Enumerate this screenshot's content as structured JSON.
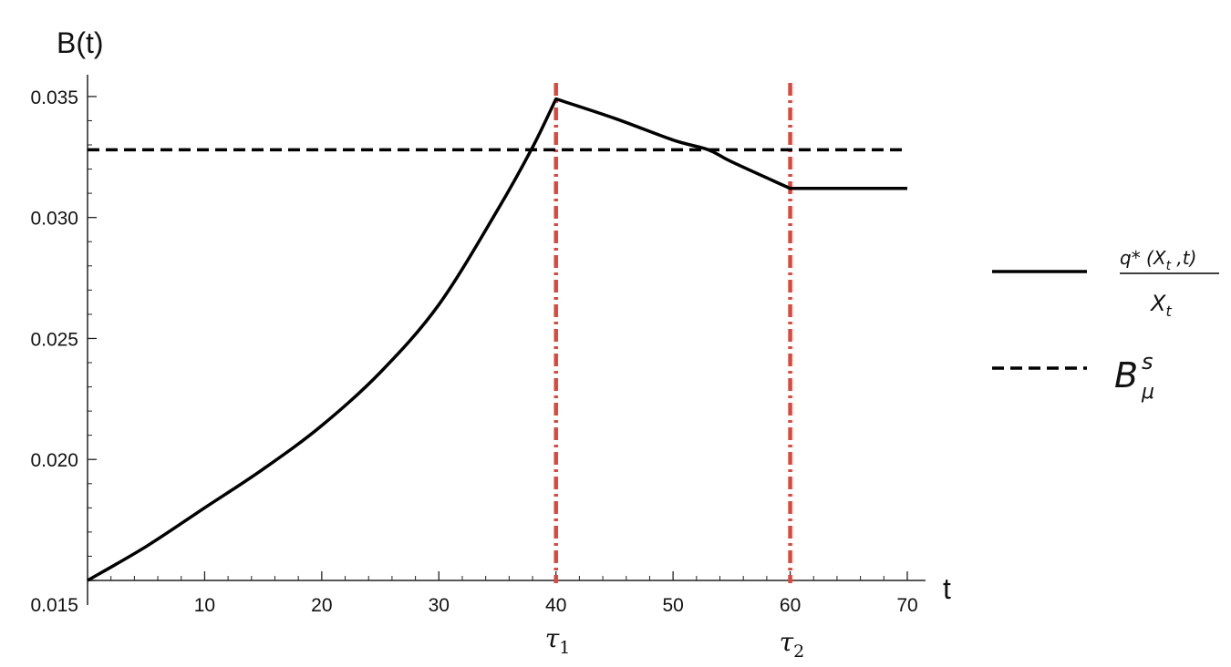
{
  "chart_data": {
    "type": "line",
    "ylabel": "B(t)",
    "xlabel": "t",
    "xlim": [
      0,
      70
    ],
    "ylim": [
      0.015,
      0.0359
    ],
    "x_ticks": [
      10,
      20,
      30,
      40,
      50,
      60,
      70
    ],
    "x_tick_labels": [
      "10",
      "20",
      "30",
      "40",
      "50",
      "60",
      "70"
    ],
    "y_ticks": [
      0.015,
      0.02,
      0.025,
      0.03,
      0.035
    ],
    "y_tick_labels": [
      "0.015",
      "0.020",
      "0.025",
      "0.030",
      "0.035"
    ],
    "series": [
      {
        "style": "solid",
        "color": "#000000",
        "x": [
          0,
          5,
          10,
          15,
          20,
          25,
          30,
          35,
          38,
          40,
          45,
          50,
          53,
          55,
          60,
          65,
          70
        ],
        "values": [
          0.015,
          0.0164,
          0.018,
          0.0196,
          0.0214,
          0.0236,
          0.0264,
          0.0303,
          0.0329,
          0.0349,
          0.0341,
          0.0332,
          0.0328,
          0.0323,
          0.0312,
          0.0312,
          0.0312
        ]
      },
      {
        "style": "dashed",
        "color": "#000000",
        "x": [
          0,
          70
        ],
        "values": [
          0.0328,
          0.0328
        ]
      }
    ],
    "vertical_lines": [
      {
        "x": 40,
        "label": "τ",
        "subscript": "1",
        "color": "#e0473a",
        "style": "dash-dot"
      },
      {
        "x": 60,
        "label": "τ",
        "subscript": "2",
        "color": "#e0473a",
        "style": "dash-dot"
      }
    ],
    "legend": {
      "placement": "right",
      "entries": [
        {
          "style": "solid",
          "numerator": "q* (X",
          "numerator_sub": "t",
          "numerator_tail": " ,t)",
          "denominator": "X",
          "denominator_sub": "t"
        },
        {
          "style": "dashed",
          "base": "B",
          "sup": "s",
          "sub": "μ"
        }
      ]
    }
  }
}
